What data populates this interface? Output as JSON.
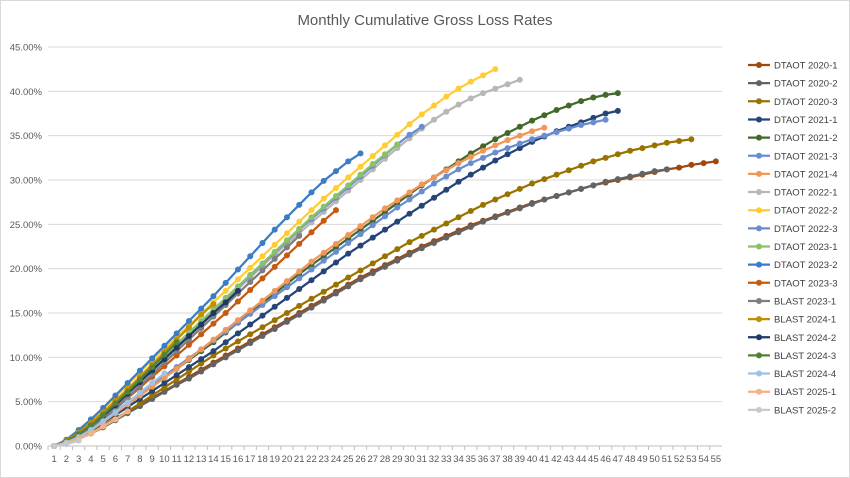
{
  "chart_data": {
    "type": "line",
    "title": "Monthly Cumulative Gross Loss Rates",
    "xlabel": "",
    "ylabel": "",
    "ylim": [
      0,
      45
    ],
    "y_unit": "%",
    "x_categories": [
      1,
      2,
      3,
      4,
      5,
      6,
      7,
      8,
      9,
      10,
      11,
      12,
      13,
      14,
      15,
      16,
      17,
      18,
      19,
      20,
      21,
      22,
      23,
      24,
      25,
      26,
      27,
      28,
      29,
      30,
      31,
      32,
      33,
      34,
      35,
      36,
      37,
      38,
      39,
      40,
      41,
      42,
      43,
      44,
      45,
      46,
      47,
      48,
      49,
      50,
      51,
      52,
      53,
      54,
      55
    ],
    "y_ticks": [
      "0.00%",
      "5.00%",
      "10.00%",
      "15.00%",
      "20.00%",
      "25.00%",
      "30.00%",
      "35.00%",
      "40.00%",
      "45.00%"
    ],
    "grid": true,
    "legend_position": "right",
    "series": [
      {
        "name": "DTAOT 2020-1",
        "color": "#9e480e",
        "values": [
          0.0,
          0.3,
          0.8,
          1.5,
          2.2,
          3.0,
          3.8,
          4.6,
          5.4,
          6.2,
          7.0,
          7.8,
          8.6,
          9.4,
          10.2,
          11.0,
          11.8,
          12.6,
          13.4,
          14.2,
          15.0,
          15.8,
          16.6,
          17.4,
          18.2,
          19.0,
          19.7,
          20.4,
          21.1,
          21.8,
          22.5,
          23.1,
          23.7,
          24.3,
          24.9,
          25.4,
          25.9,
          26.4,
          26.9,
          27.4,
          27.8,
          28.2,
          28.6,
          29.0,
          29.4,
          29.7,
          30.0,
          30.3,
          30.6,
          30.9,
          31.2,
          31.4,
          31.7,
          31.9,
          32.1
        ]
      },
      {
        "name": "DTAOT 2020-2",
        "color": "#636363",
        "values": [
          0.0,
          0.3,
          0.8,
          1.4,
          2.1,
          2.9,
          3.7,
          4.5,
          5.3,
          6.1,
          6.9,
          7.6,
          8.4,
          9.2,
          10.0,
          10.8,
          11.6,
          12.4,
          13.2,
          14.0,
          14.8,
          15.6,
          16.4,
          17.2,
          18.0,
          18.8,
          19.5,
          20.2,
          20.9,
          21.6,
          22.3,
          22.9,
          23.5,
          24.1,
          24.7,
          25.3,
          25.8,
          26.3,
          26.8,
          27.3,
          27.8,
          28.2,
          28.6,
          29.0,
          29.4,
          29.8,
          30.1,
          30.4,
          30.7,
          31.0,
          31.2
        ]
      },
      {
        "name": "DTAOT 2020-3",
        "color": "#997300",
        "values": [
          0.0,
          0.4,
          0.9,
          1.6,
          2.3,
          3.1,
          3.9,
          4.8,
          5.7,
          6.6,
          7.5,
          8.4,
          9.3,
          10.2,
          11.0,
          11.8,
          12.6,
          13.4,
          14.2,
          15.0,
          15.8,
          16.6,
          17.4,
          18.2,
          19.0,
          19.8,
          20.6,
          21.4,
          22.2,
          23.0,
          23.7,
          24.4,
          25.1,
          25.8,
          26.5,
          27.2,
          27.8,
          28.4,
          29.0,
          29.6,
          30.1,
          30.6,
          31.1,
          31.6,
          32.1,
          32.5,
          32.9,
          33.3,
          33.6,
          33.9,
          34.2,
          34.4,
          34.6
        ]
      },
      {
        "name": "DTAOT 2021-1",
        "color": "#264478",
        "values": [
          0.0,
          0.4,
          1.0,
          1.8,
          2.6,
          3.5,
          4.4,
          5.3,
          6.2,
          7.1,
          8.0,
          8.9,
          9.8,
          10.7,
          11.7,
          12.7,
          13.7,
          14.7,
          15.7,
          16.7,
          17.7,
          18.7,
          19.7,
          20.7,
          21.7,
          22.6,
          23.5,
          24.4,
          25.3,
          26.2,
          27.1,
          28.0,
          28.9,
          29.8,
          30.6,
          31.4,
          32.2,
          32.9,
          33.6,
          34.3,
          34.9,
          35.5,
          36.0,
          36.5,
          37.0,
          37.5,
          37.8
        ]
      },
      {
        "name": "DTAOT 2021-2",
        "color": "#43682b",
        "values": [
          0.0,
          0.5,
          1.1,
          1.9,
          2.8,
          3.7,
          4.7,
          5.7,
          6.7,
          7.7,
          8.7,
          9.7,
          10.7,
          11.7,
          12.8,
          13.9,
          15.0,
          16.1,
          17.2,
          18.3,
          19.4,
          20.4,
          21.4,
          22.4,
          23.4,
          24.4,
          25.4,
          26.4,
          27.4,
          28.4,
          29.4,
          30.3,
          31.2,
          32.1,
          33.0,
          33.8,
          34.6,
          35.3,
          36.0,
          36.7,
          37.3,
          37.9,
          38.4,
          38.9,
          39.3,
          39.6,
          39.8
        ]
      },
      {
        "name": "DTAOT 2021-3",
        "color": "#698ed0",
        "values": [
          0.0,
          0.5,
          1.2,
          2.0,
          2.9,
          3.9,
          4.9,
          5.9,
          6.9,
          7.9,
          8.9,
          9.9,
          10.9,
          11.9,
          12.9,
          13.9,
          14.9,
          15.9,
          16.9,
          17.9,
          18.9,
          19.9,
          20.9,
          21.9,
          22.9,
          23.9,
          24.9,
          25.9,
          26.9,
          27.8,
          28.7,
          29.6,
          30.4,
          31.2,
          31.9,
          32.5,
          33.1,
          33.6,
          34.1,
          34.6,
          35.0,
          35.4,
          35.8,
          36.2,
          36.5,
          36.8
        ]
      },
      {
        "name": "DTAOT 2021-4",
        "color": "#f1975a",
        "values": [
          0.0,
          0.4,
          1.0,
          1.8,
          2.7,
          3.7,
          4.7,
          5.7,
          6.7,
          7.7,
          8.7,
          9.8,
          10.9,
          12.0,
          13.1,
          14.2,
          15.3,
          16.4,
          17.5,
          18.6,
          19.7,
          20.8,
          21.8,
          22.8,
          23.8,
          24.8,
          25.8,
          26.8,
          27.7,
          28.6,
          29.5,
          30.3,
          31.1,
          31.9,
          32.6,
          33.3,
          33.9,
          34.5,
          35.0,
          35.5,
          35.9
        ]
      },
      {
        "name": "DTAOT 2022-1",
        "color": "#b7b7b7",
        "values": [
          0.0,
          0.6,
          1.5,
          2.5,
          3.6,
          4.8,
          6.0,
          7.3,
          8.6,
          9.9,
          11.2,
          12.5,
          13.8,
          15.1,
          16.4,
          17.7,
          19.0,
          20.3,
          21.6,
          22.8,
          24.0,
          25.2,
          26.4,
          27.6,
          28.8,
          30.0,
          31.2,
          32.4,
          33.6,
          34.7,
          35.8,
          36.8,
          37.7,
          38.5,
          39.2,
          39.8,
          40.3,
          40.8,
          41.3
        ]
      },
      {
        "name": "DTAOT 2022-2",
        "color": "#ffcd33",
        "values": [
          0.0,
          0.7,
          1.7,
          2.9,
          4.2,
          5.5,
          6.9,
          8.3,
          9.7,
          11.0,
          12.3,
          13.6,
          14.9,
          16.2,
          17.5,
          18.8,
          20.1,
          21.4,
          22.7,
          24.0,
          25.3,
          26.6,
          27.9,
          29.1,
          30.3,
          31.5,
          32.7,
          33.9,
          35.1,
          36.3,
          37.4,
          38.4,
          39.4,
          40.3,
          41.1,
          41.8,
          42.5
        ]
      },
      {
        "name": "DTAOT 2022-3",
        "color": "#698ed0",
        "values": [
          0.0,
          0.6,
          1.5,
          2.6,
          3.8,
          5.0,
          6.2,
          7.5,
          8.8,
          10.1,
          11.4,
          12.7,
          14.0,
          15.3,
          16.6,
          17.9,
          19.2,
          20.5,
          21.8,
          23.1,
          24.4,
          25.6,
          26.8,
          28.0,
          29.2,
          30.4,
          31.6,
          32.8,
          34.0,
          35.1,
          36.0
        ]
      },
      {
        "name": "DTAOT 2023-1",
        "color": "#8cc168",
        "values": [
          0.0,
          0.6,
          1.5,
          2.6,
          3.8,
          5.0,
          6.3,
          7.6,
          8.9,
          10.2,
          11.5,
          12.8,
          14.1,
          15.4,
          16.7,
          18.0,
          19.3,
          20.6,
          21.9,
          23.2,
          24.5,
          25.8,
          27.0,
          28.2,
          29.4,
          30.6,
          31.8,
          32.9,
          34.0
        ]
      },
      {
        "name": "DTAOT 2023-2",
        "color": "#3b7cc4",
        "values": [
          0.0,
          0.7,
          1.8,
          3.0,
          4.3,
          5.7,
          7.1,
          8.5,
          9.9,
          11.3,
          12.7,
          14.1,
          15.5,
          16.9,
          18.4,
          19.9,
          21.4,
          22.9,
          24.4,
          25.8,
          27.2,
          28.6,
          29.9,
          31.0,
          32.1,
          33.0
        ]
      },
      {
        "name": "DTAOT 2023-3",
        "color": "#c55a11",
        "values": [
          0.0,
          0.5,
          1.2,
          2.1,
          3.1,
          4.2,
          5.4,
          6.6,
          7.8,
          9.0,
          10.2,
          11.4,
          12.6,
          13.8,
          15.0,
          16.3,
          17.6,
          18.9,
          20.2,
          21.5,
          22.8,
          24.1,
          25.4,
          26.6
        ]
      },
      {
        "name": "BLAST 2023-1",
        "color": "#7f7f7f",
        "values": [
          0.0,
          0.5,
          1.2,
          2.1,
          3.1,
          4.3,
          5.5,
          6.8,
          8.1,
          9.4,
          10.7,
          12.0,
          13.3,
          14.6,
          15.9,
          17.2,
          18.5,
          19.8,
          21.1,
          22.4,
          23.7
        ]
      },
      {
        "name": "BLAST 2024-1",
        "color": "#bf9000",
        "values": [
          0.0,
          0.6,
          1.5,
          2.6,
          3.8,
          5.1,
          6.4,
          7.8,
          9.2,
          10.6,
          12.0,
          13.4,
          14.8,
          16.0
        ]
      },
      {
        "name": "BLAST 2024-2",
        "color": "#203864",
        "values": [
          0.0,
          0.5,
          1.3,
          2.3,
          3.4,
          4.6,
          5.9,
          7.2,
          8.5,
          9.8,
          11.1,
          12.4,
          13.7,
          15.0,
          16.2,
          17.5
        ]
      },
      {
        "name": "BLAST 2024-3",
        "color": "#548235",
        "values": [
          0.0,
          0.5,
          1.3,
          2.3,
          3.5,
          4.8,
          6.1,
          7.5,
          8.9,
          10.3,
          11.7
        ]
      },
      {
        "name": "BLAST 2024-4",
        "color": "#9dc3e6",
        "values": [
          0.0,
          0.4,
          1.0,
          1.8,
          2.8,
          3.8,
          4.9,
          6.0,
          7.1,
          8.2
        ]
      },
      {
        "name": "BLAST 2025-1",
        "color": "#f4b183",
        "values": [
          0.0,
          0.3,
          0.8,
          1.4,
          2.2,
          3.0,
          3.9
        ]
      },
      {
        "name": "BLAST 2025-2",
        "color": "#c9c9c9",
        "values": [
          0.0,
          0.2,
          0.6
        ]
      }
    ]
  }
}
